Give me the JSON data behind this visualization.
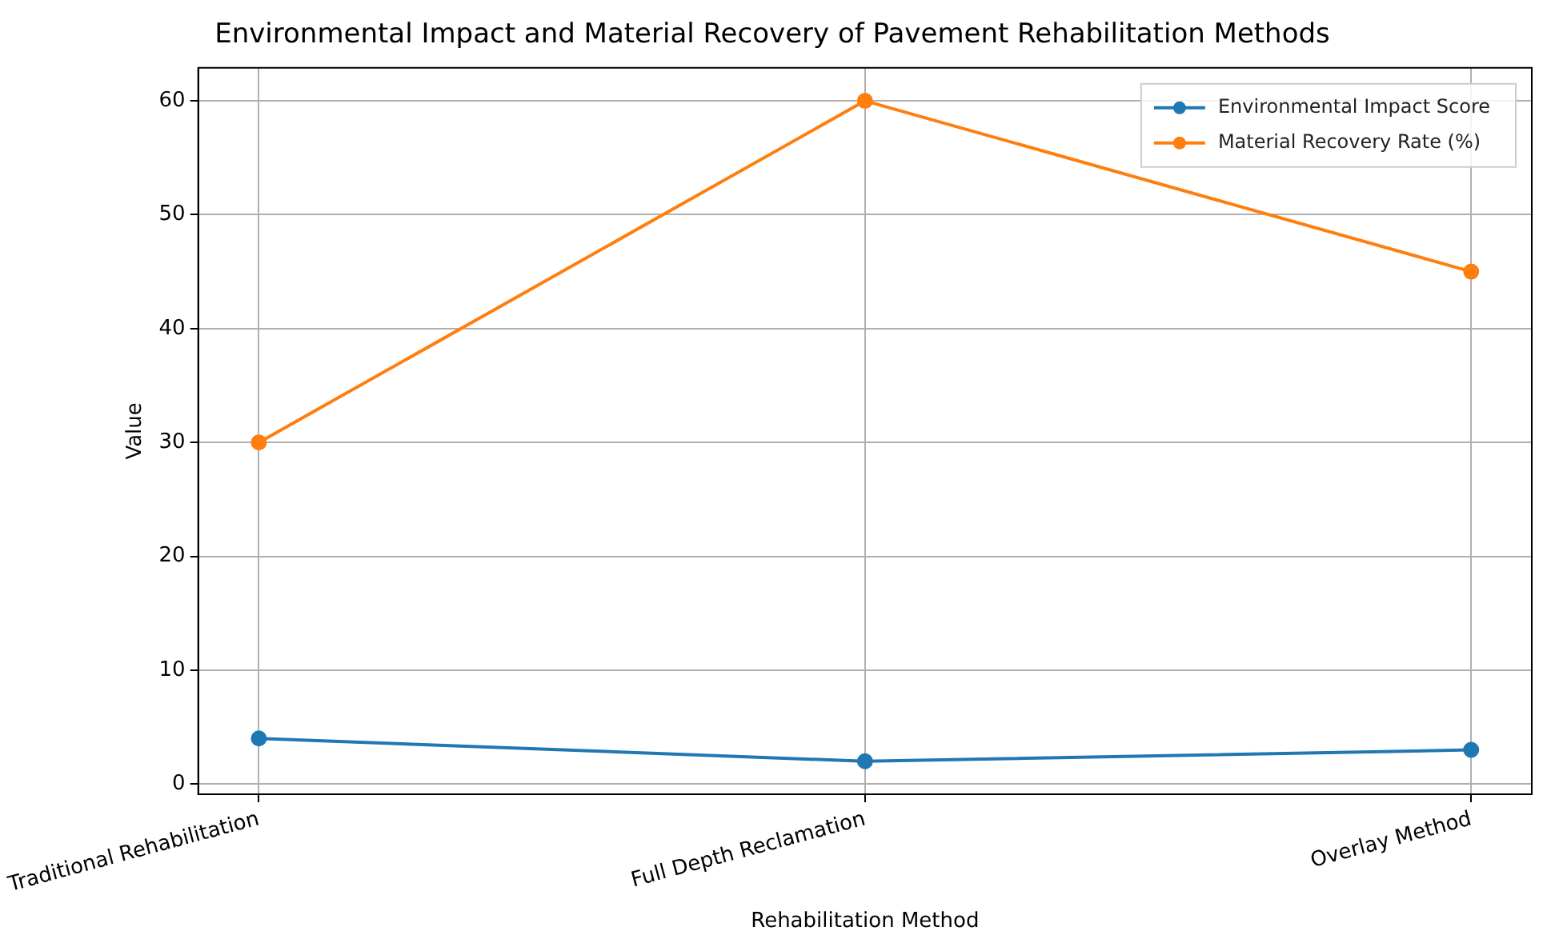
{
  "chart_data": {
    "type": "line",
    "title": "Environmental Impact and Material Recovery of Pavement Rehabilitation Methods",
    "xlabel": "Rehabilitation Method",
    "ylabel": "Value",
    "categories": [
      "Traditional Rehabilitation",
      "Full Depth Reclamation",
      "Overlay Method"
    ],
    "series": [
      {
        "name": "Environmental Impact Score",
        "color": "#1f77b4",
        "values": [
          4,
          2,
          3
        ]
      },
      {
        "name": "Material Recovery Rate (%)",
        "color": "#ff7f0e",
        "values": [
          30,
          60,
          45
        ]
      }
    ],
    "ylim": [
      -0.9,
      62.9
    ],
    "yticks": [
      0,
      10,
      20,
      30,
      40,
      50,
      60
    ],
    "grid": true,
    "legend": "top right",
    "marker": "circle",
    "line_style": "solid"
  }
}
